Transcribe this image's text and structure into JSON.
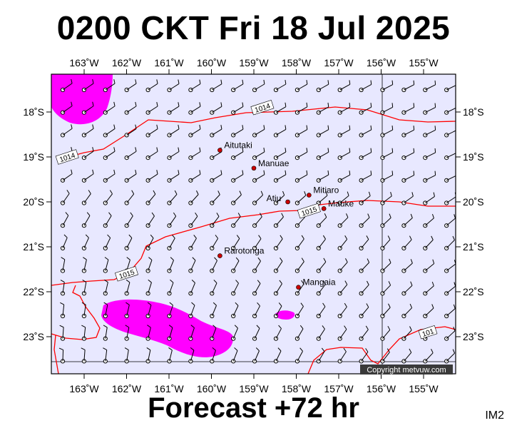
{
  "title": "0200 CKT Fri 18 Jul 2025",
  "footer": "Forecast +72 hr",
  "corner_label": "IM2",
  "copyright": "Copyright metvuw.com",
  "colors": {
    "ocean": "#e8e8ff",
    "rain": "#ff00ff",
    "isobar": "#ff0000",
    "island": "#cc0000",
    "barb": "#000000"
  },
  "lon_ticks": [
    {
      "lon": -163,
      "label": "163˚W"
    },
    {
      "lon": -162,
      "label": "162˚W"
    },
    {
      "lon": -161,
      "label": "161˚W"
    },
    {
      "lon": -160,
      "label": "160˚W"
    },
    {
      "lon": -159,
      "label": "159˚W"
    },
    {
      "lon": -158,
      "label": "158˚W"
    },
    {
      "lon": -157,
      "label": "157˚W"
    },
    {
      "lon": -156,
      "label": "156˚W"
    },
    {
      "lon": -155,
      "label": "155˚W"
    }
  ],
  "lat_ticks": [
    {
      "lat": -18,
      "label": "18˚S"
    },
    {
      "lat": -19,
      "label": "19˚S"
    },
    {
      "lat": -20,
      "label": "20˚S"
    },
    {
      "lat": -21,
      "label": "21˚S"
    },
    {
      "lat": -22,
      "label": "22˚S"
    },
    {
      "lat": -23,
      "label": "23˚S"
    }
  ],
  "islands": [
    {
      "name": "Aitutaki",
      "lon": -159.8,
      "lat": -18.85
    },
    {
      "name": "Manuae",
      "lon": -159.0,
      "lat": -19.25
    },
    {
      "name": "Mitiaro",
      "lon": -157.7,
      "lat": -19.85
    },
    {
      "name": "Atiu",
      "lon": -158.2,
      "lat": -20.0
    },
    {
      "name": "Mauke",
      "lon": -157.35,
      "lat": -20.15
    },
    {
      "name": "Rarotonga",
      "lon": -159.8,
      "lat": -21.2
    },
    {
      "name": "Mangaia",
      "lon": -157.95,
      "lat": -21.9
    }
  ],
  "isobars": [
    {
      "value": "1014",
      "label_at": [
        -158.8,
        -17.9
      ]
    },
    {
      "value": "1014",
      "label_at": [
        -163.4,
        -19.0
      ]
    },
    {
      "value": "1015",
      "label_at": [
        -157.7,
        -20.2
      ]
    },
    {
      "value": "1015",
      "label_at": [
        -162.0,
        -21.6
      ]
    },
    {
      "value": "101",
      "label_at": [
        -154.9,
        -22.9
      ]
    }
  ]
}
